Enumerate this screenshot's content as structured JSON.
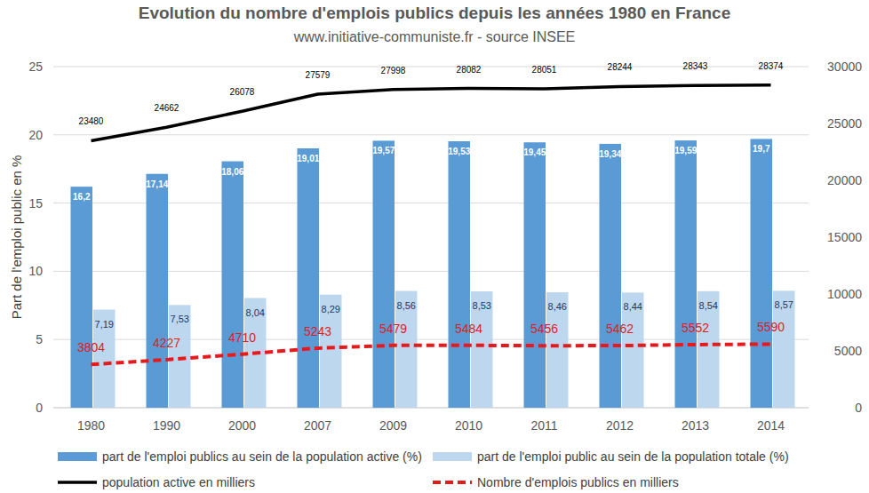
{
  "chart_data": {
    "type": "bar",
    "title": "Evolution du nombre d'emplois publics depuis les années 1980 en France",
    "subtitle": "www.initiative-communiste.fr - source INSEE",
    "y_label": "Part de l'emploi public en %",
    "categories": [
      "1980",
      "1990",
      "2000",
      "2007",
      "2009",
      "2010",
      "2011",
      "2012",
      "2013",
      "2014"
    ],
    "ylim": [
      0,
      25
    ],
    "yticks": [
      0,
      5,
      10,
      15,
      20,
      25
    ],
    "y2lim": [
      0,
      30000
    ],
    "y2ticks": [
      0,
      5000,
      10000,
      15000,
      20000,
      25000,
      30000
    ],
    "grid": true,
    "legend": "bottom",
    "data_labels": true,
    "series": [
      {
        "name": "part de l'emploi publics au sein de la population active (%)",
        "type": "bar",
        "color": "#5b9bd5",
        "values": [
          16.2,
          17.14,
          18.06,
          19.01,
          19.57,
          19.53,
          19.45,
          19.34,
          19.59,
          19.7
        ],
        "value_labels": [
          "16,2",
          "17,14",
          "18,06",
          "19,01",
          "19,57",
          "19,53",
          "19,45",
          "19,34",
          "19,59",
          "19,7"
        ]
      },
      {
        "name": "part de l'emploi public au sein de la population totale (%)",
        "type": "bar",
        "color": "#bdd7ee",
        "values": [
          7.19,
          7.53,
          8.04,
          8.29,
          8.56,
          8.53,
          8.46,
          8.44,
          8.54,
          8.57
        ],
        "value_labels": [
          "7,19",
          "7,53",
          "8,04",
          "8,29",
          "8,56",
          "8,53",
          "8,46",
          "8,44",
          "8,54",
          "8,57"
        ]
      },
      {
        "name": "population active en milliers",
        "type": "line",
        "axis": "y2",
        "color": "#000000",
        "line_style": "solid",
        "values": [
          23480,
          24662,
          26078,
          27579,
          27998,
          28082,
          28051,
          28244,
          28343,
          28374
        ]
      },
      {
        "name": "Nombre d'emplois publics en milliers",
        "type": "line",
        "axis": "y2",
        "color": "#e41a1c",
        "line_style": "dashed",
        "values": [
          3804,
          4227,
          4710,
          5243,
          5479,
          5484,
          5456,
          5462,
          5552,
          5590
        ]
      }
    ]
  }
}
